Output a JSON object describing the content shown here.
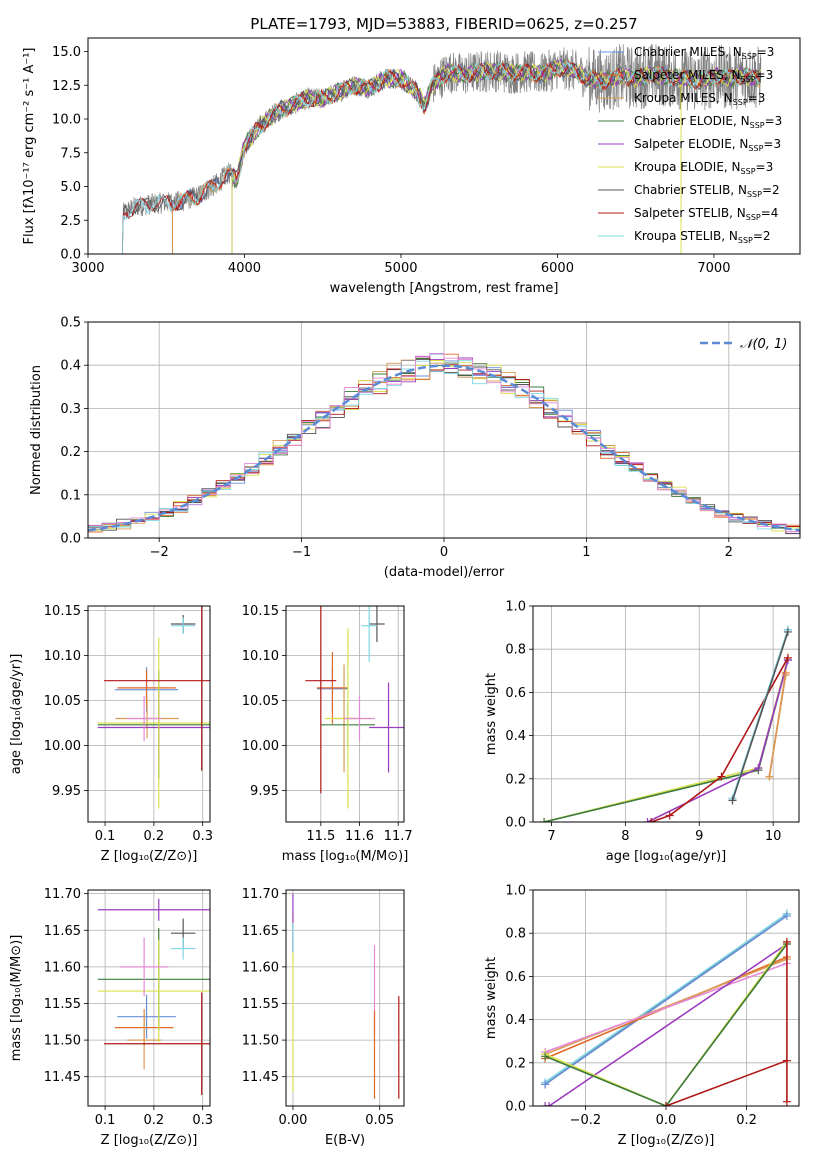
{
  "figure": {
    "title": "PLATE=1793, MJD=53883, FIBERID=0625, z=0.257"
  },
  "colors": {
    "Chabrier MILES": "#6a8fd8",
    "Salpeter MILES": "#e06a2a",
    "Kroupa MILES": "#d89a55",
    "Chabrier ELODIE": "#3d7a3d",
    "Salpeter ELODIE": "#9b3cc0",
    "Kroupa ELODIE": "#d9e04a",
    "Chabrier STELIB": "#555555",
    "Salpeter STELIB": "#b01818",
    "Kroupa STELIB": "#7fd6e6",
    "normal_curve": "#5b8bd6",
    "data_spectrum": "#808080",
    "pink": "#e48ad6",
    "cyan_bright": "#85e0ee"
  },
  "chart_data": [
    {
      "id": "spectrum",
      "type": "line",
      "title": "PLATE=1793, MJD=53883, FIBERID=0625, z=0.257",
      "xlabel": "wavelength [Angstrom, rest frame]",
      "ylabel": "Flux [fλ10⁻¹⁷ erg cm⁻² s⁻¹ A⁻¹]",
      "xlim": [
        3000,
        7550
      ],
      "ylim": [
        0,
        16
      ],
      "xticks": [
        3000,
        4000,
        5000,
        6000,
        7000
      ],
      "yticks": [
        0.0,
        2.5,
        5.0,
        7.5,
        10.0,
        12.5,
        15.0
      ],
      "grid": false,
      "legend_position": "top-right",
      "legend": [
        {
          "label": "Chabrier MILES, N",
          "sub": "SSP",
          "tail": "=3"
        },
        {
          "label": "Salpeter MILES, N",
          "sub": "SSP",
          "tail": "=3"
        },
        {
          "label": "Kroupa MILES, N",
          "sub": "SSP",
          "tail": "=3"
        },
        {
          "label": "Chabrier ELODIE, N",
          "sub": "SSP",
          "tail": "=3"
        },
        {
          "label": "Salpeter ELODIE, N",
          "sub": "SSP",
          "tail": "=3"
        },
        {
          "label": "Kroupa ELODIE, N",
          "sub": "SSP",
          "tail": "=3"
        },
        {
          "label": "Chabrier STELIB, N",
          "sub": "SSP",
          "tail": "=2"
        },
        {
          "label": "Salpeter STELIB, N",
          "sub": "SSP",
          "tail": "=4"
        },
        {
          "label": "Kroupa STELIB, N",
          "sub": "SSP",
          "tail": "=2"
        }
      ],
      "continuum": [
        [
          3220,
          0
        ],
        [
          3225,
          3.0
        ],
        [
          3300,
          3.5
        ],
        [
          3400,
          3.7
        ],
        [
          3500,
          3.8
        ],
        [
          3600,
          3.9
        ],
        [
          3700,
          4.3
        ],
        [
          3800,
          5.0
        ],
        [
          3900,
          6.0
        ],
        [
          3950,
          5.5
        ],
        [
          4000,
          8.0
        ],
        [
          4100,
          9.5
        ],
        [
          4200,
          10.5
        ],
        [
          4300,
          11.0
        ],
        [
          4400,
          11.5
        ],
        [
          4500,
          11.5
        ],
        [
          4600,
          12.0
        ],
        [
          4700,
          12.5
        ],
        [
          4800,
          12.3
        ],
        [
          4900,
          13.0
        ],
        [
          5000,
          13.0
        ],
        [
          5100,
          12.0
        ],
        [
          5150,
          11.0
        ],
        [
          5200,
          12.5
        ],
        [
          5300,
          13.5
        ],
        [
          5400,
          13.3
        ],
        [
          5500,
          13.5
        ],
        [
          5600,
          13.6
        ],
        [
          5700,
          13.4
        ],
        [
          5800,
          13.5
        ],
        [
          5900,
          13.3
        ],
        [
          6000,
          13.8
        ],
        [
          6100,
          13.6
        ],
        [
          6200,
          13.0
        ],
        [
          6300,
          12.8
        ],
        [
          6400,
          13.2
        ],
        [
          6500,
          13.0
        ],
        [
          6600,
          13.3
        ],
        [
          6700,
          13.2
        ],
        [
          6800,
          13.0
        ],
        [
          6900,
          12.8
        ],
        [
          7000,
          13.2
        ],
        [
          7100,
          13.0
        ],
        [
          7200,
          13.2
        ],
        [
          7300,
          13.0
        ]
      ],
      "model_starts": {
        "MILES": 3540,
        "ELODIE": 3920,
        "STELIB": 3220
      }
    },
    {
      "id": "residuals",
      "type": "histogram",
      "xlabel": "(data-model)/error",
      "ylabel": "Normed distribution",
      "xlim": [
        -2.5,
        2.5
      ],
      "ylim": [
        0,
        0.5
      ],
      "xticks": [
        -2,
        -1,
        0,
        1,
        2
      ],
      "yticks": [
        0.0,
        0.1,
        0.2,
        0.3,
        0.4,
        0.5
      ],
      "grid": true,
      "legend_position": "top-right",
      "legend": [
        {
          "label": "𝒩(0, 1)",
          "style": "dashed"
        }
      ],
      "bin_width": 0.1,
      "x_start": -2.5
    },
    {
      "id": "age-vs-Z",
      "type": "scatter",
      "xlabel": "Z [log₁₀(Z/Z⊙)]",
      "ylabel": "age  [log₁₀(age/yr)]",
      "xlim": [
        0.065,
        0.315
      ],
      "ylim": [
        9.915,
        10.155
      ],
      "xticks": [
        0.1,
        0.2,
        0.3
      ],
      "yticks": [
        9.95,
        10.0,
        10.05,
        10.1,
        10.15
      ],
      "grid": true,
      "points": [
        {
          "series": "Chabrier MILES",
          "x": 0.185,
          "y": 10.062,
          "xerr": 0.065,
          "yerr": 0.025
        },
        {
          "series": "Salpeter MILES",
          "x": 0.185,
          "y": 10.064,
          "xerr": 0.06,
          "yerr": 0.02
        },
        {
          "series": "Kroupa MILES",
          "x": 0.186,
          "y": 10.03,
          "xerr": 0.065,
          "yerr": 0.022
        },
        {
          "series": "Chabrier ELODIE",
          "x": 0.21,
          "y": 10.023,
          "xerr": 0.125,
          "yerr": 0.06
        },
        {
          "series": "Salpeter ELODIE",
          "x": 0.21,
          "y": 10.02,
          "xerr": 0.125,
          "yerr": 0.04
        },
        {
          "series": "Kroupa ELODIE",
          "x": 0.21,
          "y": 10.025,
          "xerr": 0.125,
          "yerr": 0.095
        },
        {
          "series": "Chabrier STELIB",
          "x": 0.26,
          "y": 10.135,
          "xerr": 0.025,
          "yerr": 0.01
        },
        {
          "series": "Salpeter STELIB",
          "x": 0.298,
          "y": 10.072,
          "xerr": 0.2,
          "yerr": 0.1
        },
        {
          "series": "Kroupa STELIB",
          "x": 0.26,
          "y": 10.133,
          "xerr": 0.025,
          "yerr": 0.009
        },
        {
          "series": "pink",
          "x": 0.18,
          "y": 10.03,
          "xerr": 0.035,
          "yerr": 0.025
        }
      ]
    },
    {
      "id": "age-vs-mass",
      "type": "scatter",
      "xlabel": "mass [log₁₀(M/M⊙)]",
      "ylabel": "",
      "xlim": [
        11.41,
        11.715
      ],
      "ylim": [
        9.915,
        10.155
      ],
      "xticks": [
        11.5,
        11.6,
        11.7
      ],
      "yticks": [
        9.95,
        10.0,
        10.05,
        10.1,
        10.15
      ],
      "grid": true,
      "points": [
        {
          "series": "Chabrier MILES",
          "x": 11.53,
          "y": 10.063,
          "xerr": 0.04,
          "yerr": 0.025
        },
        {
          "series": "Salpeter MILES",
          "x": 11.53,
          "y": 10.064,
          "xerr": 0.04,
          "yerr": 0.04
        },
        {
          "series": "Kroupa MILES",
          "x": 11.56,
          "y": 10.03,
          "xerr": 0.03,
          "yerr": 0.06
        },
        {
          "series": "Chabrier ELODIE",
          "x": 11.57,
          "y": 10.023,
          "xerr": 0.07,
          "yerr": 0.025
        },
        {
          "series": "Salpeter ELODIE",
          "x": 11.675,
          "y": 10.02,
          "xerr": 0.05,
          "yerr": 0.05
        },
        {
          "series": "Kroupa ELODIE",
          "x": 11.57,
          "y": 10.03,
          "xerr": 0.06,
          "yerr": 0.1
        },
        {
          "series": "Chabrier STELIB",
          "x": 11.645,
          "y": 10.135,
          "xerr": 0.02,
          "yerr": 0.02
        },
        {
          "series": "Salpeter STELIB",
          "x": 11.5,
          "y": 10.072,
          "xerr": 0.04,
          "yerr": 0.125
        },
        {
          "series": "Kroupa STELIB",
          "x": 11.625,
          "y": 10.133,
          "xerr": 0.02,
          "yerr": 0.04
        },
        {
          "series": "pink",
          "x": 11.6,
          "y": 10.03,
          "xerr": 0.04,
          "yerr": 0.025
        }
      ]
    },
    {
      "id": "weight-vs-age",
      "type": "line",
      "xlabel": "age  [log₁₀(age/yr)]",
      "ylabel": "mass weight",
      "xlim": [
        6.75,
        10.35
      ],
      "ylim": [
        0,
        1.0
      ],
      "xticks": [
        7,
        8,
        9,
        10
      ],
      "yticks": [
        0.0,
        0.2,
        0.4,
        0.6,
        0.8,
        1.0
      ],
      "grid": true,
      "series": [
        {
          "name": "Kroupa ELODIE",
          "points": [
            [
              6.9,
              0.0
            ],
            [
              9.8,
              0.25
            ],
            [
              10.2,
              0.76
            ]
          ]
        },
        {
          "name": "Chabrier ELODIE",
          "points": [
            [
              6.9,
              0.0
            ],
            [
              9.8,
              0.24
            ],
            [
              10.2,
              0.75
            ]
          ]
        },
        {
          "name": "Salpeter ELODIE",
          "points": [
            [
              8.3,
              0.0
            ],
            [
              9.8,
              0.25
            ],
            [
              10.2,
              0.75
            ]
          ]
        },
        {
          "name": "Salpeter STELIB",
          "points": [
            [
              8.35,
              0.0
            ],
            [
              8.6,
              0.03
            ],
            [
              9.3,
              0.21
            ],
            [
              10.2,
              0.76
            ]
          ]
        },
        {
          "name": "Chabrier MILES",
          "points": [
            [
              9.45,
              0.1
            ],
            [
              10.2,
              0.89
            ]
          ]
        },
        {
          "name": "Kroupa STELIB",
          "points": [
            [
              9.45,
              0.11
            ],
            [
              10.2,
              0.89
            ]
          ]
        },
        {
          "name": "Chabrier STELIB",
          "points": [
            [
              9.45,
              0.1
            ],
            [
              10.2,
              0.88
            ]
          ]
        },
        {
          "name": "Salpeter MILES",
          "points": [
            [
              9.95,
              0.21
            ],
            [
              10.17,
              0.69
            ]
          ]
        },
        {
          "name": "Kroupa MILES",
          "points": [
            [
              9.95,
              0.21
            ],
            [
              10.17,
              0.68
            ]
          ]
        }
      ]
    },
    {
      "id": "mass-vs-Z",
      "type": "scatter",
      "xlabel": "Z [log₁₀(Z/Z⊙)]",
      "ylabel": "mass [log₁₀(M/M⊙)]",
      "xlim": [
        0.065,
        0.315
      ],
      "ylim": [
        11.41,
        11.705
      ],
      "xticks": [
        0.1,
        0.2,
        0.3
      ],
      "yticks": [
        11.45,
        11.5,
        11.55,
        11.6,
        11.65,
        11.7
      ],
      "grid": true,
      "points": [
        {
          "series": "Chabrier MILES",
          "x": 0.185,
          "y": 11.532,
          "xerr": 0.06,
          "yerr": 0.03
        },
        {
          "series": "Salpeter MILES",
          "x": 0.18,
          "y": 11.517,
          "xerr": 0.06,
          "yerr": 0.025
        },
        {
          "series": "Kroupa MILES",
          "x": 0.18,
          "y": 11.5,
          "xerr": 0.035,
          "yerr": 0.04
        },
        {
          "series": "Chabrier ELODIE",
          "x": 0.21,
          "y": 11.583,
          "xerr": 0.125,
          "yerr": 0.07
        },
        {
          "series": "Salpeter ELODIE",
          "x": 0.21,
          "y": 11.678,
          "xerr": 0.125,
          "yerr": 0.015
        },
        {
          "series": "Kroupa ELODIE",
          "x": 0.21,
          "y": 11.567,
          "xerr": 0.125,
          "yerr": 0.07
        },
        {
          "series": "Chabrier STELIB",
          "x": 0.26,
          "y": 11.646,
          "xerr": 0.025,
          "yerr": 0.02
        },
        {
          "series": "Salpeter STELIB",
          "x": 0.298,
          "y": 11.495,
          "xerr": 0.2,
          "yerr": 0.07
        },
        {
          "series": "Kroupa STELIB",
          "x": 0.26,
          "y": 11.625,
          "xerr": 0.025,
          "yerr": 0.015
        },
        {
          "series": "pink",
          "x": 0.18,
          "y": 11.6,
          "xerr": 0.05,
          "yerr": 0.04
        }
      ]
    },
    {
      "id": "mass-vs-ebv",
      "type": "scatter",
      "xlabel": "E(B-V)",
      "ylabel": "",
      "xlim": [
        -0.004,
        0.064
      ],
      "ylim": [
        11.41,
        11.705
      ],
      "xticks": [
        0.0,
        0.05
      ],
      "yticks": [
        11.45,
        11.5,
        11.55,
        11.6,
        11.65,
        11.7
      ],
      "grid": true,
      "points": [
        {
          "series": "Kroupa ELODIE",
          "x": 0.0,
          "y": 11.55,
          "xerr": 0.0,
          "yerr": 0.12
        },
        {
          "series": "Salpeter ELODIE",
          "x": 0.0,
          "y": 11.66,
          "xerr": 0.0,
          "yerr": 0.04
        },
        {
          "series": "Kroupa STELIB",
          "x": 0.0,
          "y": 11.64,
          "xerr": 0.0,
          "yerr": 0.02
        },
        {
          "series": "pink",
          "x": 0.047,
          "y": 11.57,
          "xerr": 0.0,
          "yerr": 0.06
        },
        {
          "series": "Salpeter MILES",
          "x": 0.047,
          "y": 11.48,
          "xerr": 0.0,
          "yerr": 0.06
        },
        {
          "series": "Salpeter STELIB",
          "x": 0.061,
          "y": 11.49,
          "xerr": 0.0,
          "yerr": 0.07
        }
      ]
    },
    {
      "id": "weight-vs-Z",
      "type": "line",
      "xlabel": "Z [log₁₀(Z/Z⊙)]",
      "ylabel": "mass weight",
      "xlim": [
        -0.33,
        0.33
      ],
      "ylim": [
        0,
        1.0
      ],
      "xticks": [
        -0.2,
        0.0,
        0.2
      ],
      "yticks": [
        0.0,
        0.2,
        0.4,
        0.6,
        0.8,
        1.0
      ],
      "grid": true,
      "series": [
        {
          "name": "Chabrier STELIB",
          "points": [
            [
              -0.3,
              0.1
            ],
            [
              0.3,
              0.89
            ]
          ]
        },
        {
          "name": "Kroupa STELIB",
          "points": [
            [
              -0.3,
              0.11
            ],
            [
              0.3,
              0.89
            ]
          ]
        },
        {
          "name": "Chabrier MILES",
          "points": [
            [
              -0.3,
              0.1
            ],
            [
              0.3,
              0.88
            ]
          ]
        },
        {
          "name": "Salpeter MILES",
          "points": [
            [
              -0.3,
              0.22
            ],
            [
              0.3,
              0.69
            ]
          ]
        },
        {
          "name": "Kroupa MILES",
          "points": [
            [
              -0.3,
              0.24
            ],
            [
              0.3,
              0.68
            ]
          ]
        },
        {
          "name": "pink",
          "points": [
            [
              -0.3,
              0.25
            ],
            [
              0.3,
              0.66
            ]
          ]
        },
        {
          "name": "Salpeter ELODIE",
          "points": [
            [
              -0.3,
              0.0
            ],
            [
              -0.29,
              0.0
            ],
            [
              0.3,
              0.75
            ]
          ]
        },
        {
          "name": "Kroupa ELODIE",
          "points": [
            [
              -0.3,
              0.24
            ],
            [
              0.0,
              0.0
            ],
            [
              0.3,
              0.76
            ]
          ]
        },
        {
          "name": "Chabrier ELODIE",
          "points": [
            [
              -0.3,
              0.23
            ],
            [
              0.0,
              0.0
            ],
            [
              0.3,
              0.75
            ]
          ]
        },
        {
          "name": "Salpeter STELIB",
          "points": [
            [
              0.0,
              0.0
            ],
            [
              0.3,
              0.21
            ],
            [
              0.3,
              0.76
            ],
            [
              0.3,
              0.02
            ]
          ]
        }
      ]
    }
  ]
}
